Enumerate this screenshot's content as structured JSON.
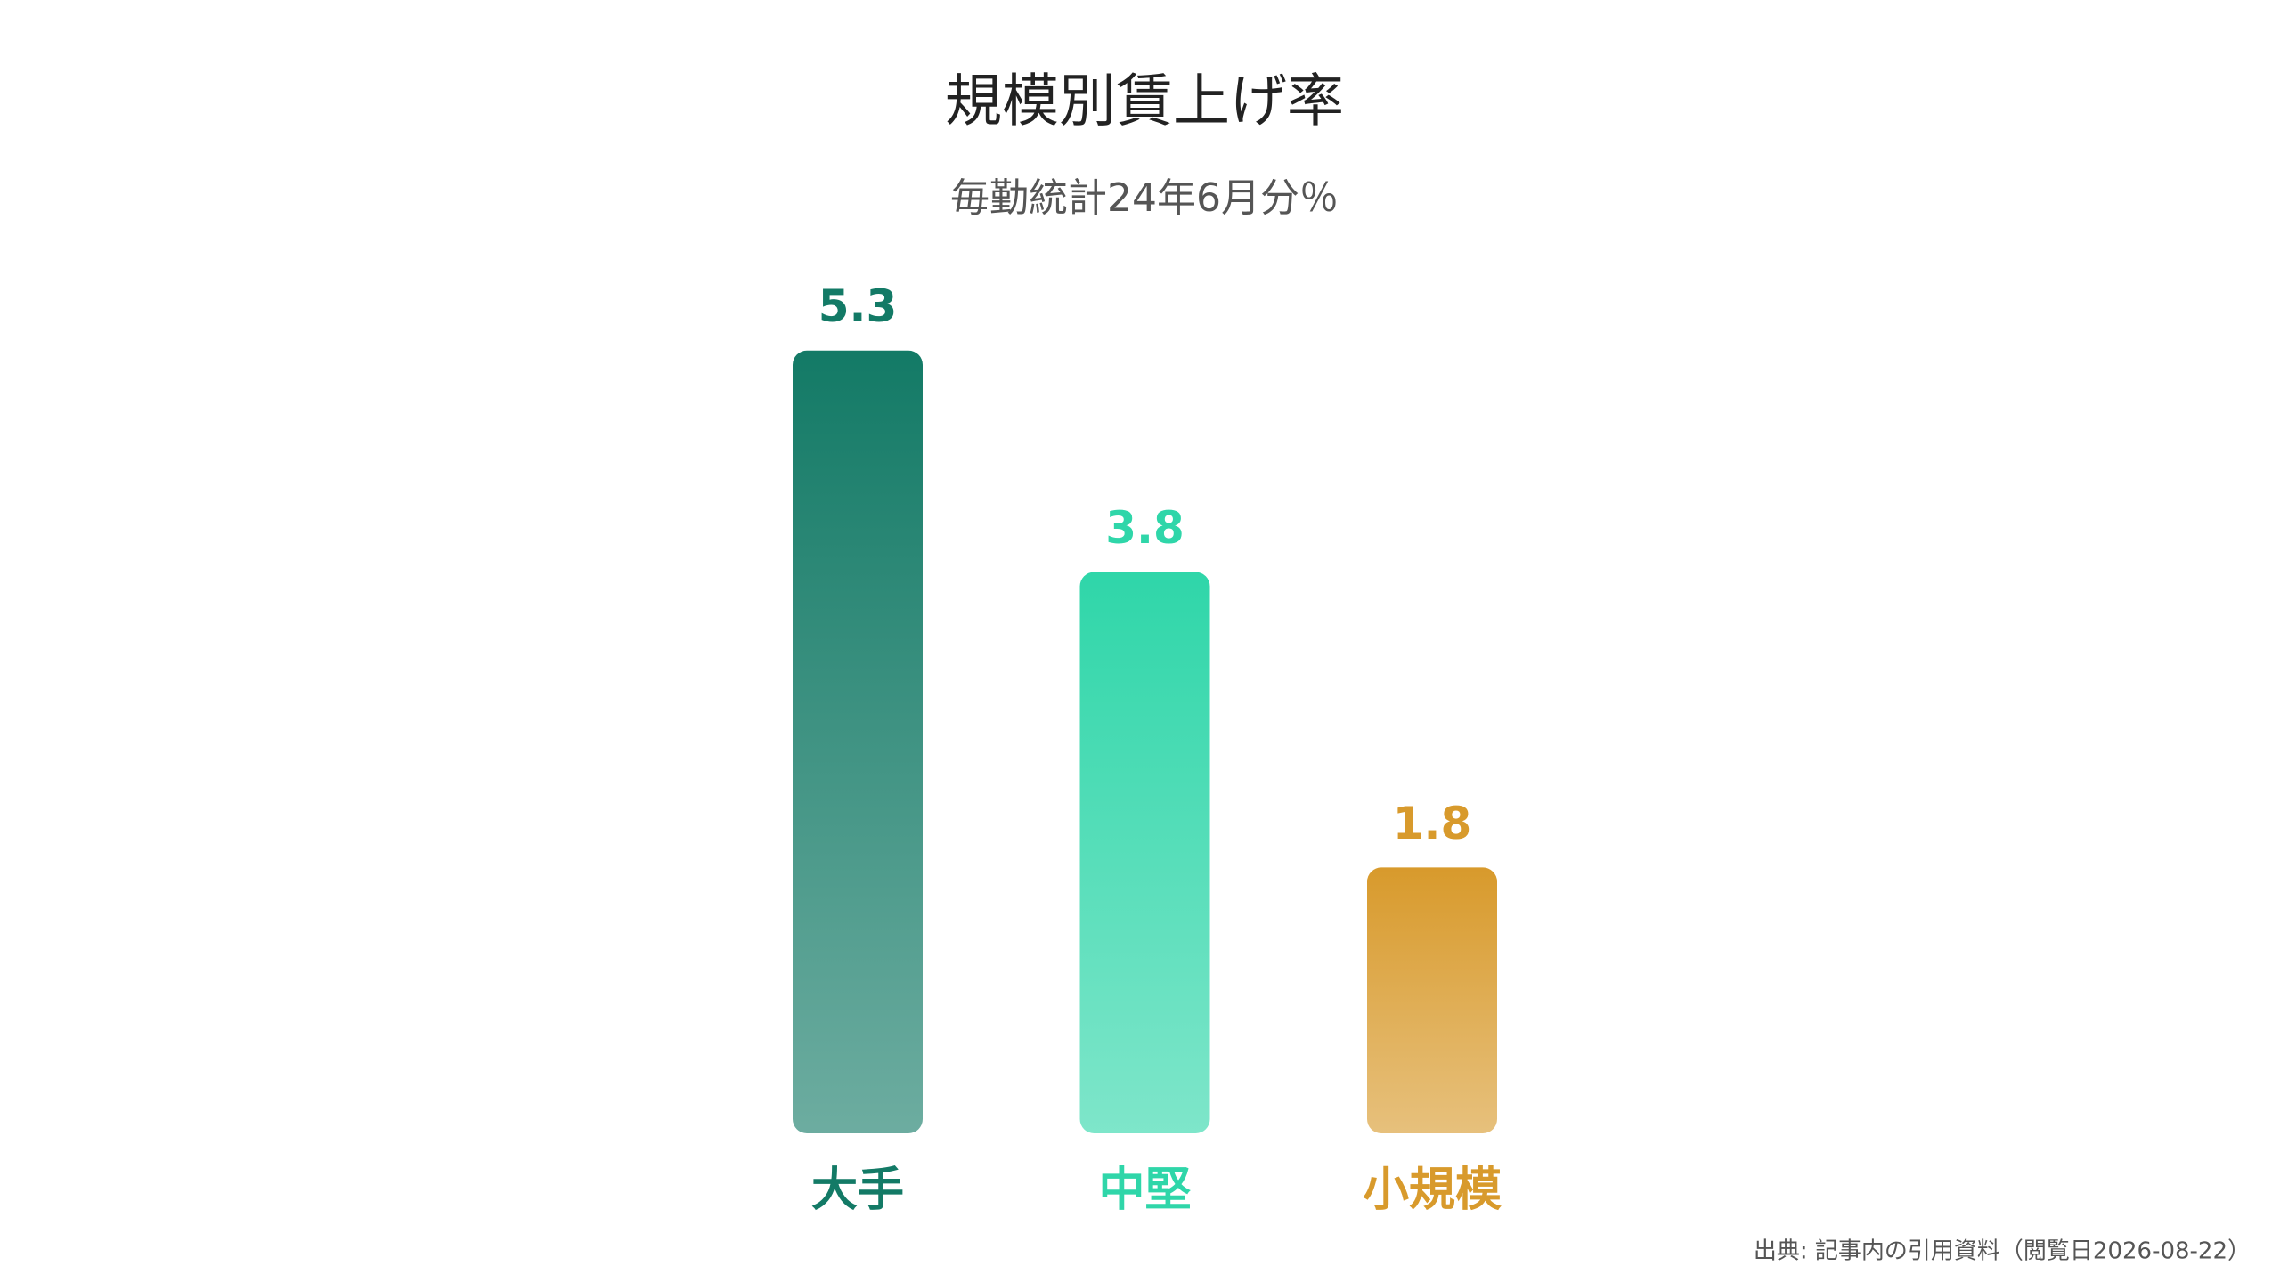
{
  "chart_data": {
    "type": "bar",
    "title": "規模別賃上げ率",
    "subtitle": "毎勤統計24年6月分％",
    "categories": [
      "大手",
      "中堅",
      "小規模"
    ],
    "values": [
      5.3,
      3.8,
      1.8
    ],
    "colors": [
      "#137a66",
      "#2fd6a9",
      "#d89a2c"
    ],
    "source": "出典: 記事内の引用資料（閲覧日2026-08-22）"
  }
}
